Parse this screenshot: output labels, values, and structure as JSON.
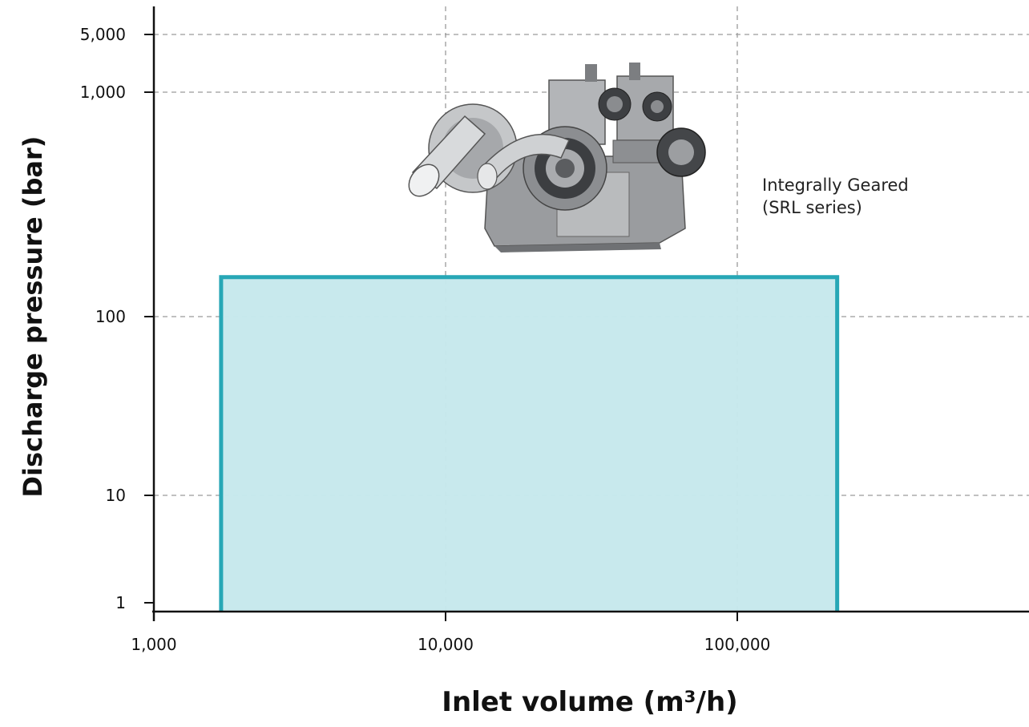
{
  "chart_data": {
    "type": "area",
    "title": "",
    "xlabel": "Inlet volume (m³/h)",
    "ylabel": "Discharge pressure (bar)",
    "x_scale": "log",
    "y_scale": "custom-log",
    "xlim": [
      1000,
      1000000
    ],
    "ylim": [
      1,
      5000
    ],
    "grid": true,
    "x_ticks": [
      {
        "value": 1000,
        "label": "1,000"
      },
      {
        "value": 10000,
        "label": "10,000"
      },
      {
        "value": 100000,
        "label": "100,000"
      }
    ],
    "y_ticks": [
      {
        "value": 1,
        "label": "1"
      },
      {
        "value": 10,
        "label": "10"
      },
      {
        "value": 100,
        "label": "100"
      },
      {
        "value": 1000,
        "label": "1,000"
      },
      {
        "value": 5000,
        "label": "5,000"
      }
    ],
    "regions": [
      {
        "x_range": [
          1700,
          220000
        ],
        "y_range": [
          1,
          150
        ],
        "fill_color": "#c6e8ec",
        "stroke_color": "#27a7b6"
      }
    ],
    "annotations": [
      {
        "lines": [
          "Integrally Geared",
          "(SRL series)"
        ],
        "icon": "integrally-geared-compressor-illustration"
      }
    ]
  }
}
